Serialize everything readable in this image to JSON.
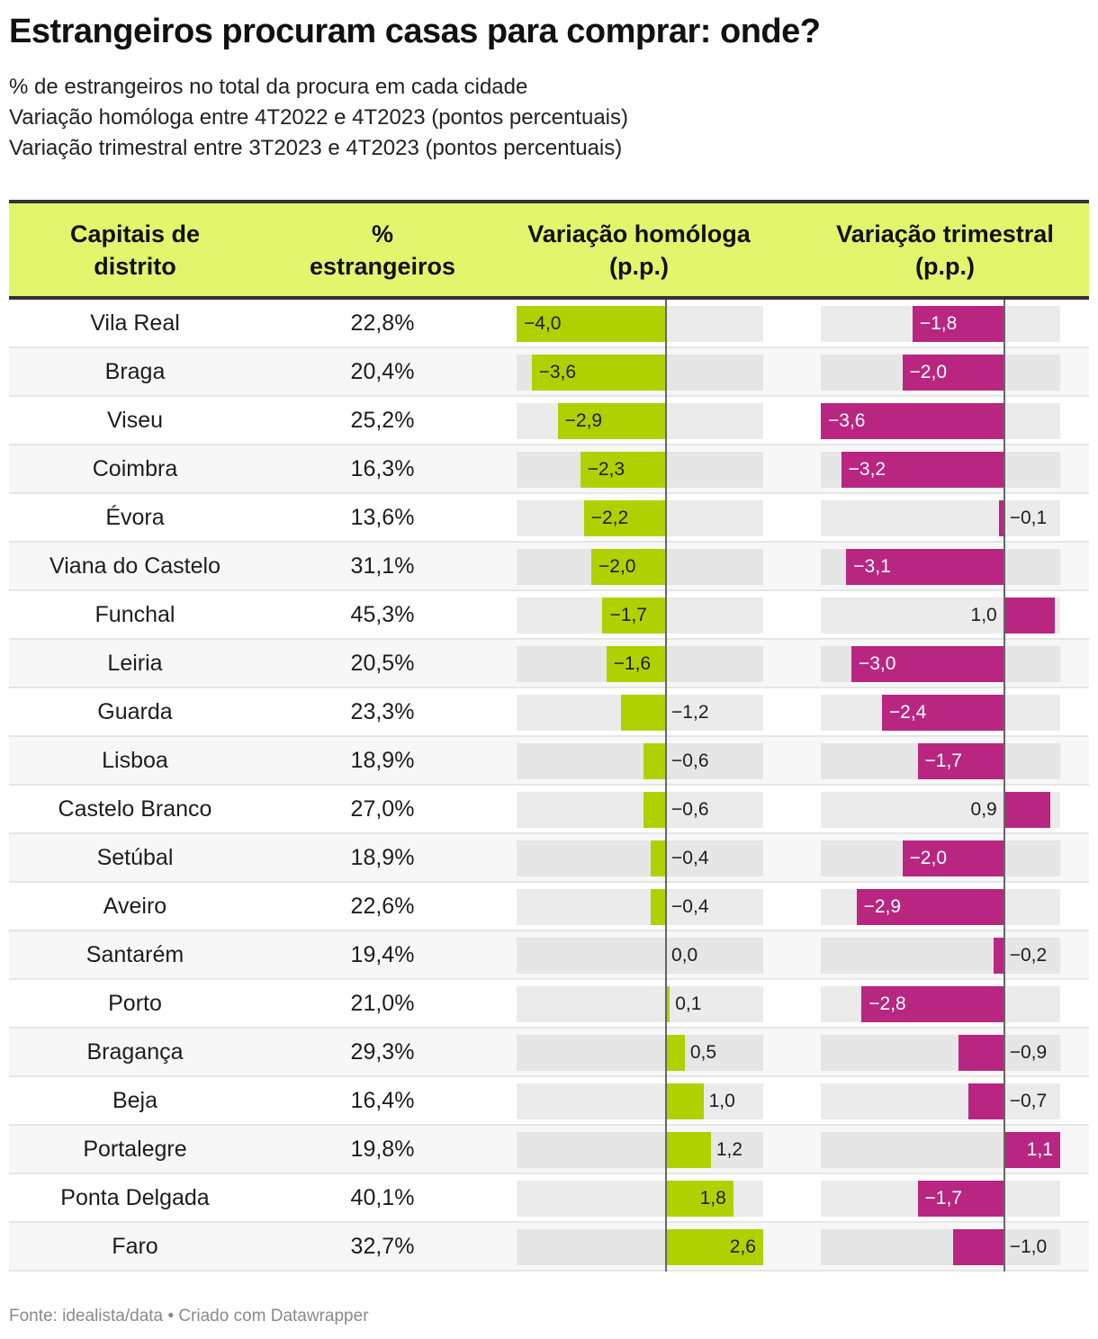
{
  "title": "Estrangeiros procuram casas para comprar: onde?",
  "subtitle_lines": [
    "% de estrangeiros no total da procura em cada cidade",
    "Variação homóloga entre 4T2022 e 4T2023 (pontos percentuais)",
    "Variação trimestral entre 3T2023 e 4T2023 (pontos percentuais)"
  ],
  "header": {
    "city": "Capitais de distrito",
    "pct": "% estrangeiros",
    "homologa": "Variação homóloga (p.p.)",
    "trimestral": "Variação trimestral (p.p.)"
  },
  "colors": {
    "header_bg": "#e2f56c",
    "homologa_bar": "#b0d100",
    "trimestral_bar": "#b82682"
  },
  "footer": "Fonte: idealista/data • Criado com Datawrapper",
  "chart_data": {
    "type": "table",
    "title": "Estrangeiros procuram casas para comprar: onde?",
    "columns": [
      "Capitais de distrito",
      "% estrangeiros",
      "Variação homóloga (p.p.)",
      "Variação trimestral (p.p.)"
    ],
    "homologa_range": [
      -4.0,
      2.6
    ],
    "trimestral_range": [
      -3.6,
      1.1
    ],
    "rows": [
      {
        "city": "Vila Real",
        "pct": "22,8%",
        "homologa": -4.0,
        "homologa_label": "−4,0",
        "trimestral": -1.8,
        "trimestral_label": "−1,8"
      },
      {
        "city": "Braga",
        "pct": "20,4%",
        "homologa": -3.6,
        "homologa_label": "−3,6",
        "trimestral": -2.0,
        "trimestral_label": "−2,0"
      },
      {
        "city": "Viseu",
        "pct": "25,2%",
        "homologa": -2.9,
        "homologa_label": "−2,9",
        "trimestral": -3.6,
        "trimestral_label": "−3,6"
      },
      {
        "city": "Coimbra",
        "pct": "16,3%",
        "homologa": -2.3,
        "homologa_label": "−2,3",
        "trimestral": -3.2,
        "trimestral_label": "−3,2"
      },
      {
        "city": "Évora",
        "pct": "13,6%",
        "homologa": -2.2,
        "homologa_label": "−2,2",
        "trimestral": -0.1,
        "trimestral_label": "−0,1"
      },
      {
        "city": "Viana do Castelo",
        "pct": "31,1%",
        "homologa": -2.0,
        "homologa_label": "−2,0",
        "trimestral": -3.1,
        "trimestral_label": "−3,1"
      },
      {
        "city": "Funchal",
        "pct": "45,3%",
        "homologa": -1.7,
        "homologa_label": "−1,7",
        "trimestral": 1.0,
        "trimestral_label": "1,0"
      },
      {
        "city": "Leiria",
        "pct": "20,5%",
        "homologa": -1.6,
        "homologa_label": "−1,6",
        "trimestral": -3.0,
        "trimestral_label": "−3,0"
      },
      {
        "city": "Guarda",
        "pct": "23,3%",
        "homologa": -1.2,
        "homologa_label": "−1,2",
        "trimestral": -2.4,
        "trimestral_label": "−2,4"
      },
      {
        "city": "Lisboa",
        "pct": "18,9%",
        "homologa": -0.6,
        "homologa_label": "−0,6",
        "trimestral": -1.7,
        "trimestral_label": "−1,7"
      },
      {
        "city": "Castelo Branco",
        "pct": "27,0%",
        "homologa": -0.6,
        "homologa_label": "−0,6",
        "trimestral": 0.9,
        "trimestral_label": "0,9"
      },
      {
        "city": "Setúbal",
        "pct": "18,9%",
        "homologa": -0.4,
        "homologa_label": "−0,4",
        "trimestral": -2.0,
        "trimestral_label": "−2,0"
      },
      {
        "city": "Aveiro",
        "pct": "22,6%",
        "homologa": -0.4,
        "homologa_label": "−0,4",
        "trimestral": -2.9,
        "trimestral_label": "−2,9"
      },
      {
        "city": "Santarém",
        "pct": "19,4%",
        "homologa": 0.0,
        "homologa_label": "0,0",
        "trimestral": -0.2,
        "trimestral_label": "−0,2"
      },
      {
        "city": "Porto",
        "pct": "21,0%",
        "homologa": 0.1,
        "homologa_label": "0,1",
        "trimestral": -2.8,
        "trimestral_label": "−2,8"
      },
      {
        "city": "Bragança",
        "pct": "29,3%",
        "homologa": 0.5,
        "homologa_label": "0,5",
        "trimestral": -0.9,
        "trimestral_label": "−0,9"
      },
      {
        "city": "Beja",
        "pct": "16,4%",
        "homologa": 1.0,
        "homologa_label": "1,0",
        "trimestral": -0.7,
        "trimestral_label": "−0,7"
      },
      {
        "city": "Portalegre",
        "pct": "19,8%",
        "homologa": 1.2,
        "homologa_label": "1,2",
        "trimestral": 1.1,
        "trimestral_label": "1,1"
      },
      {
        "city": "Ponta Delgada",
        "pct": "40,1%",
        "homologa": 1.8,
        "homologa_label": "1,8",
        "trimestral": -1.7,
        "trimestral_label": "−1,7"
      },
      {
        "city": "Faro",
        "pct": "32,7%",
        "homologa": 2.6,
        "homologa_label": "2,6",
        "trimestral": -1.0,
        "trimestral_label": "−1,0"
      }
    ]
  }
}
